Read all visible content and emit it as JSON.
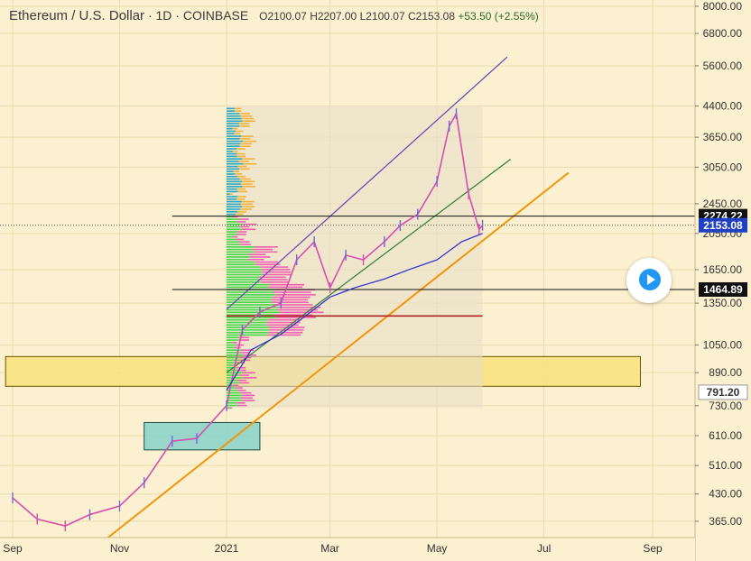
{
  "header": {
    "symbol": "Ethereum / U.S. Dollar",
    "interval": "1D",
    "exchange": "COINBASE",
    "open": "O2100.07",
    "high": "H2207.00",
    "low": "L2100.07",
    "close": "C2153.08",
    "change": "+53.50 (+2.55%)"
  },
  "colors": {
    "background": "#fbf0cf",
    "up": "#6a6ad8",
    "down": "#d64fb0",
    "channel": "#6a3fb5",
    "support": "#f0960e",
    "green_line": "#2e7d32",
    "vwap": "#2a2ad0",
    "hline": "#111111",
    "red_line": "#b22222",
    "price_label": "#1e40c4",
    "zone_yellow": "#f9e27d",
    "zone_teal": "#86d2c9",
    "profile_box": "#e7dfc9",
    "vp_green": "#43d94a",
    "vp_pink": "#ef5fb1",
    "vp_orange": "#f3b23b",
    "vp_teal": "#27a9c3"
  },
  "chart_data": {
    "type": "line",
    "title": "Ethereum / U.S. Dollar",
    "log_scale": true,
    "y_axis_ticks": [
      8000,
      6800,
      5600,
      4400,
      3650,
      3050,
      2450,
      2050,
      1650,
      1350,
      1050,
      890,
      730,
      610,
      510,
      430,
      365
    ],
    "y_axis_tick_labels": [
      "8000.00",
      "6800.00",
      "5600.00",
      "4400.00",
      "3650.00",
      "3050.00",
      "2450.00",
      "2050.00",
      "1650.00",
      "1350.00",
      "1050.00",
      "890.00",
      "730.00",
      "610.00",
      "510.00",
      "430.00",
      "365.00"
    ],
    "x_axis_labels": [
      "Sep",
      "Nov",
      "2021",
      "Mar",
      "May",
      "Jul",
      "Sep"
    ],
    "ylim": [
      320,
      8300
    ],
    "price_labels": [
      {
        "value": 2274.22,
        "label": "2274.22",
        "style": "dark"
      },
      {
        "value": 2153.08,
        "label": "2153.08",
        "style": "blue"
      },
      {
        "value": 1464.89,
        "label": "1464.89",
        "style": "dark"
      },
      {
        "value": 791.2,
        "label": "791.20",
        "style": "light"
      }
    ],
    "price_series": {
      "name": "ETHUSD",
      "x_dates": [
        "2020-09-01",
        "2020-09-15",
        "2020-10-01",
        "2020-10-15",
        "2020-11-01",
        "2020-11-15",
        "2020-12-01",
        "2020-12-15",
        "2021-01-01",
        "2021-01-10",
        "2021-01-20",
        "2021-02-01",
        "2021-02-10",
        "2021-02-20",
        "2021-03-01",
        "2021-03-10",
        "2021-03-20",
        "2021-04-01",
        "2021-04-10",
        "2021-04-20",
        "2021-05-01",
        "2021-05-08",
        "2021-05-12",
        "2021-05-19",
        "2021-05-25",
        "2021-05-27"
      ],
      "values": [
        420,
        370,
        355,
        380,
        400,
        460,
        590,
        600,
        730,
        1150,
        1280,
        1350,
        1750,
        1950,
        1480,
        1800,
        1750,
        1950,
        2150,
        2300,
        2800,
        3900,
        4200,
        2600,
        2100,
        2153.08
      ]
    },
    "vwap_series": {
      "x_dates": [
        "2021-01-01",
        "2021-01-15",
        "2021-02-01",
        "2021-02-15",
        "2021-03-01",
        "2021-03-15",
        "2021-04-01",
        "2021-04-15",
        "2021-05-01",
        "2021-05-15",
        "2021-05-27"
      ],
      "values": [
        800,
        1020,
        1120,
        1250,
        1400,
        1480,
        1560,
        1650,
        1750,
        1950,
        2050
      ]
    },
    "annotations": [
      {
        "kind": "trendline",
        "name": "upper-channel",
        "from": [
          "2021-01-01",
          1300
        ],
        "to": [
          "2021-06-10",
          5900
        ]
      },
      {
        "kind": "trendline",
        "name": "lower-channel",
        "from": [
          "2021-01-01",
          890
        ],
        "to": [
          "2021-06-12",
          3200
        ]
      },
      {
        "kind": "trendline",
        "name": "support-line",
        "from": [
          "2020-10-25",
          330
        ],
        "to": [
          "2021-07-15",
          2950
        ]
      },
      {
        "kind": "hline",
        "name": "resistance-2274",
        "value": 2274.22,
        "from": "2020-12-01",
        "to": "2021-10-15"
      },
      {
        "kind": "hline",
        "name": "level-1464",
        "value": 1464.89,
        "from": "2020-12-01",
        "to": "2021-10-15"
      },
      {
        "kind": "hline",
        "name": "red-poc",
        "value": 1250,
        "from": "2021-01-01",
        "to": "2021-05-27"
      },
      {
        "kind": "zone",
        "name": "yellow-demand-zone",
        "y": [
          820,
          980
        ],
        "from": "2020-08-28",
        "to": "2021-08-25"
      },
      {
        "kind": "zone",
        "name": "teal-zone",
        "y": [
          560,
          660
        ],
        "from": "2020-11-15",
        "to": "2021-01-20"
      },
      {
        "kind": "zone",
        "name": "volume-profile-box",
        "y": [
          720,
          4400
        ],
        "from": "2021-01-01",
        "to": "2021-05-27"
      }
    ]
  }
}
